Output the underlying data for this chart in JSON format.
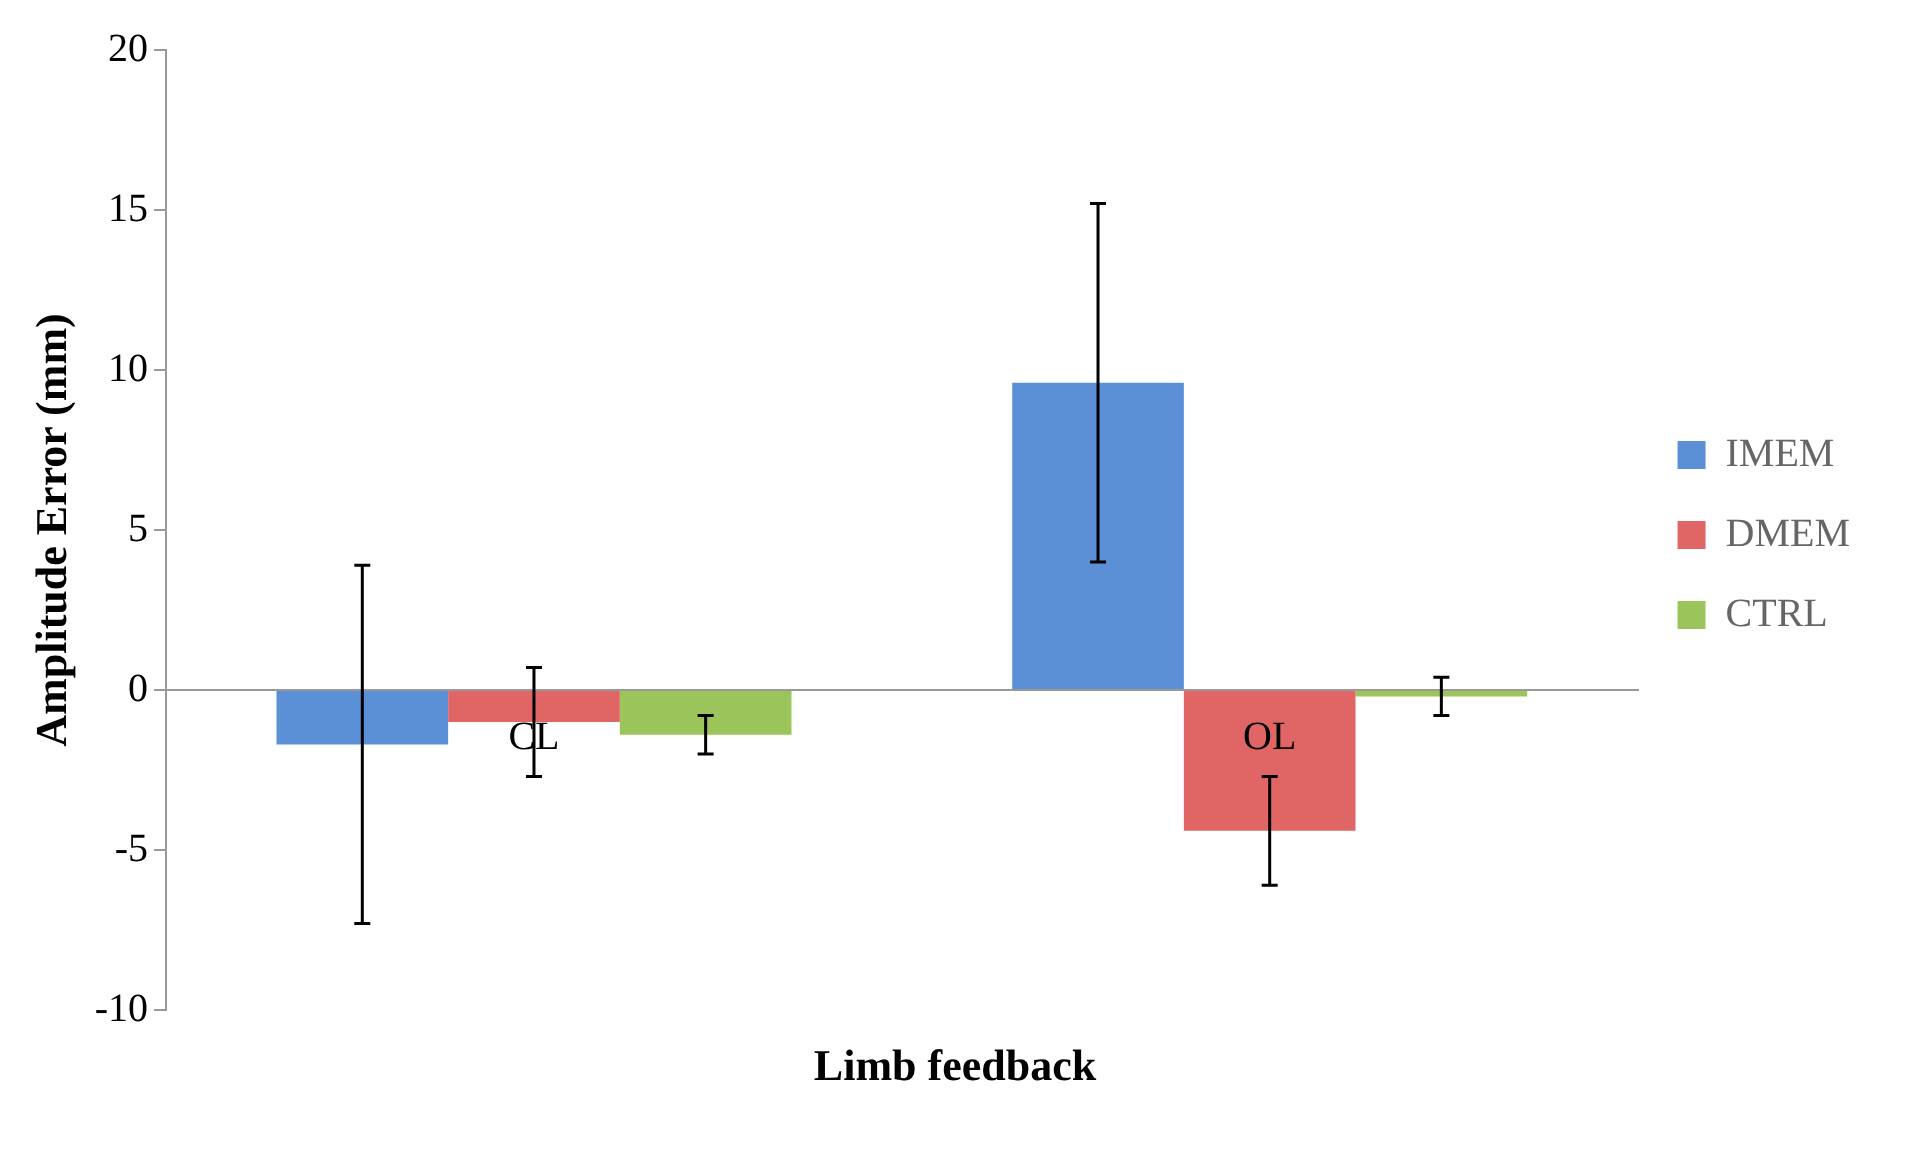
{
  "chart_data": {
    "type": "bar",
    "ylabel": "Amplitude Error (mm)",
    "xlabel": "Limb feedback",
    "categories": [
      "CL",
      "OL"
    ],
    "series": [
      {
        "name": "IMEM",
        "color": "#5b8fd6",
        "values": [
          -1.7,
          9.6
        ],
        "errors": [
          5.6,
          5.6
        ]
      },
      {
        "name": "DMEM",
        "color": "#e06666",
        "values": [
          -1.0,
          -4.4
        ],
        "errors": [
          1.7,
          1.7
        ]
      },
      {
        "name": "CTRL",
        "color": "#9bc45a",
        "values": [
          -1.4,
          -0.2
        ],
        "errors": [
          0.6,
          0.6
        ]
      }
    ],
    "ylim": [
      -10,
      20
    ],
    "yticks": [
      -10,
      -5,
      0,
      5,
      10,
      15,
      20
    ],
    "grid": false,
    "legend": "right"
  }
}
